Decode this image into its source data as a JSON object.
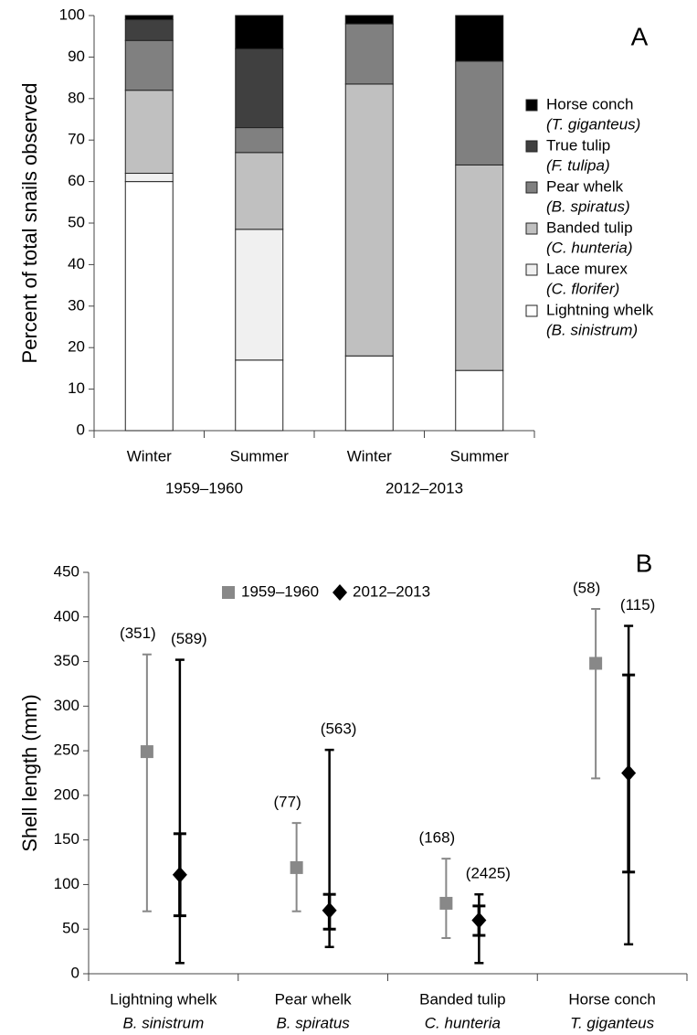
{
  "chart_data": [
    {
      "type": "stacked_bar",
      "ylabel": "Percent of total snails observed",
      "annotation": "A",
      "categories": [
        "Winter",
        "Summer",
        "Winter",
        "Summer"
      ],
      "groups": [
        "1959–1960",
        "2012–2013"
      ],
      "ylim": [
        0,
        100
      ],
      "yticks": [
        0,
        10,
        20,
        30,
        40,
        50,
        60,
        70,
        80,
        90,
        100
      ],
      "series": [
        {
          "name": "Lightning whelk",
          "species": "(B. sinistrum)",
          "color": "#ffffff",
          "values": [
            60,
            17,
            18,
            14.5
          ]
        },
        {
          "name": "Lace murex",
          "species": "(C. florifer)",
          "color": "#f0f0f0",
          "values": [
            2,
            31.5,
            0,
            0
          ]
        },
        {
          "name": "Banded tulip",
          "species": "(C. hunteria)",
          "color": "#c0c0c0",
          "values": [
            20,
            18.5,
            65.5,
            49.5
          ]
        },
        {
          "name": "Pear whelk",
          "species": "(B. spiratus)",
          "color": "#808080",
          "values": [
            12,
            6,
            14.5,
            25
          ]
        },
        {
          "name": "True tulip",
          "species": "(F. tulipa)",
          "color": "#404040",
          "values": [
            5,
            19,
            0,
            0
          ]
        },
        {
          "name": "Horse conch",
          "species": "(T. giganteus)",
          "color": "#000000",
          "values": [
            1,
            8,
            2,
            11
          ]
        }
      ]
    },
    {
      "type": "errorbar",
      "ylabel": "Shell length (mm)",
      "annotation": "B",
      "categories": [
        "Lightning whelk",
        "Pear whelk",
        "Banded tulip",
        "Horse conch"
      ],
      "subcategories": [
        "B. sinistrum",
        "B. spiratus",
        "C. hunteria",
        "T. giganteus"
      ],
      "ylim": [
        0,
        450
      ],
      "yticks": [
        0,
        50,
        100,
        150,
        200,
        250,
        300,
        350,
        400,
        450
      ],
      "series": [
        {
          "name": "1959–1960",
          "color": "#888888",
          "marker": "square",
          "values": [
            249,
            119,
            79,
            348
          ],
          "low": [
            70,
            70,
            40,
            219
          ],
          "high": [
            358,
            169,
            129,
            409
          ],
          "labels": [
            "(351)",
            "(77)",
            "(168)",
            "(58)"
          ]
        },
        {
          "name": "2012–2013",
          "color": "#000000",
          "marker": "diamond",
          "values": [
            111,
            71,
            60,
            225
          ],
          "low": [
            12,
            30,
            12,
            33
          ],
          "high": [
            352,
            251,
            89,
            390
          ],
          "inner_low": [
            65,
            50,
            43,
            114
          ],
          "inner_high": [
            157,
            89,
            76,
            335
          ],
          "labels": [
            "(589)",
            "(563)",
            "(2425)",
            "(115)"
          ]
        }
      ]
    }
  ]
}
